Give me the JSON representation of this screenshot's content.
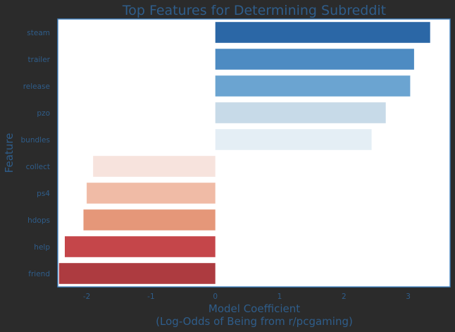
{
  "chart_data": {
    "type": "bar",
    "orientation": "horizontal",
    "title": "Top Features for Determining Subreddit",
    "xlabel": "Model Coefficient",
    "xlabel_line2": "(Log-Odds of Being from r/pcgaming)",
    "ylabel": "Feature",
    "xlim": [
      -2.45,
      3.65
    ],
    "xticks": [
      -2,
      -1,
      0,
      1,
      2,
      3
    ],
    "xtick_labels": [
      "-2",
      "-1",
      "0",
      "1",
      "2",
      "3"
    ],
    "grid": false,
    "categories": [
      "steam",
      "trailer",
      "release",
      "pzo",
      "bundles",
      "collect",
      "ps4",
      "hdops",
      "help",
      "friend"
    ],
    "values": [
      3.34,
      3.09,
      3.03,
      2.65,
      2.43,
      -1.9,
      -2.0,
      -2.05,
      -2.34,
      -2.43
    ],
    "colors": [
      "#2b67a6",
      "#4d8bc2",
      "#6ba4d1",
      "#c7dae8",
      "#e4eef5",
      "#f7e3dd",
      "#f0bba6",
      "#e59779",
      "#c5464a",
      "#ad3b40"
    ]
  }
}
